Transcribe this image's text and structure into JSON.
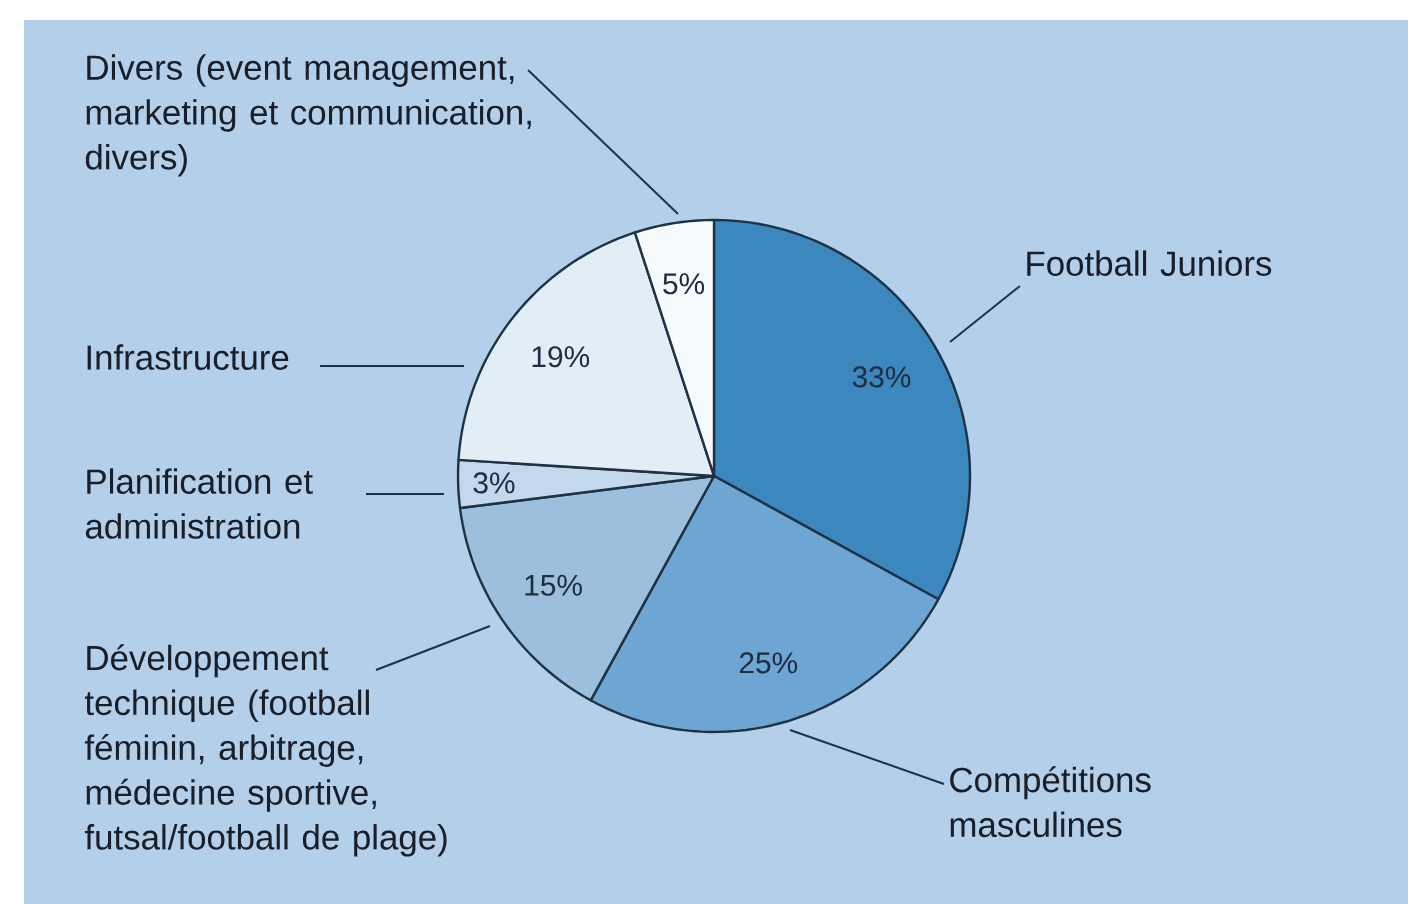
{
  "chart_data": {
    "type": "pie",
    "categories": [
      "Football Juniors",
      "Compétitions masculines",
      "Développement technique (football féminin, arbitrage, médecine sportive, futsal/football de plage)",
      "Planification et administration",
      "Infrastructure",
      "Divers (event management, marketing et communication, divers)"
    ],
    "values": [
      33,
      25,
      15,
      3,
      19,
      5
    ],
    "value_labels": [
      "33%",
      "25%",
      "15%",
      "3%",
      "19%",
      "5%"
    ],
    "colors": [
      "#3d87bf",
      "#6ea6d3",
      "#9bbfdd",
      "#c3d8ea",
      "#e3edf6",
      "#f7fafd"
    ]
  }
}
